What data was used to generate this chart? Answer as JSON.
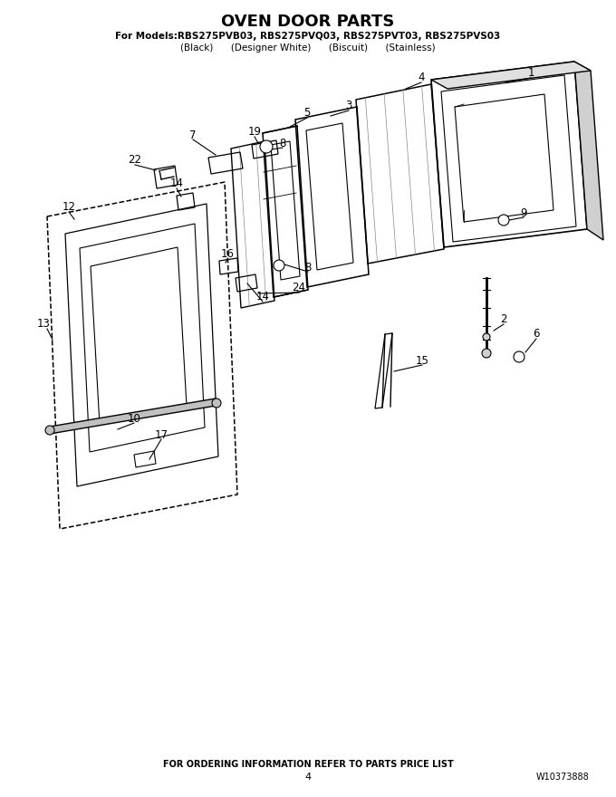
{
  "title": "OVEN DOOR PARTS",
  "subtitle_line1": "For Models:RBS275PVB03, RBS275PVQ03, RBS275PVT03, RBS275PVS03",
  "subtitle_line2": "(Black)      (Designer White)      (Biscuit)      (Stainless)",
  "footer_left": "FOR ORDERING INFORMATION REFER TO PARTS PRICE LIST",
  "footer_page": "4",
  "footer_right": "W10373888",
  "bg_color": "#ffffff",
  "line_color": "#000000",
  "label_color": "#000000",
  "figsize": [
    6.8,
    8.8
  ],
  "dpi": 100
}
